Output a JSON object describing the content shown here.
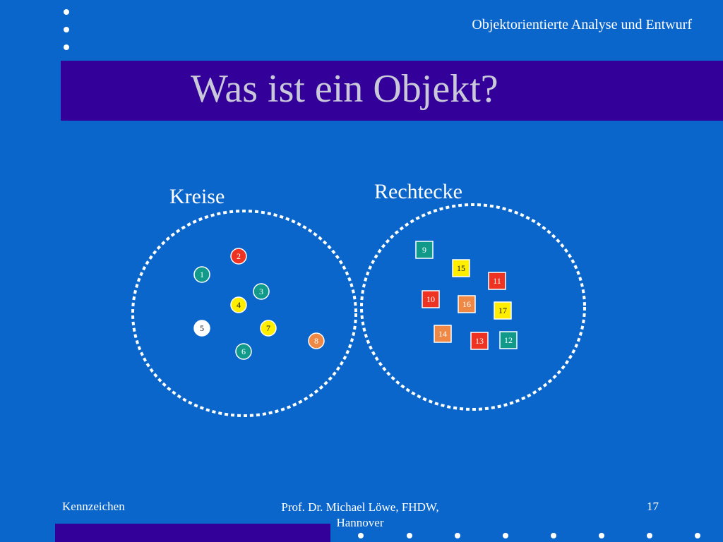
{
  "header": {
    "course_title": "Objektorientierte Analyse und Entwurf"
  },
  "slide": {
    "title": "Was ist ein Objekt?"
  },
  "groups": [
    {
      "label": "Kreise",
      "shape": "circle",
      "objects": [
        {
          "label": "1",
          "color": "#11998a"
        },
        {
          "label": "2",
          "color": "#ee3322"
        },
        {
          "label": "3",
          "color": "#11998a"
        },
        {
          "label": "4",
          "color": "#ffee00"
        },
        {
          "label": "5",
          "color": "#ffffff"
        },
        {
          "label": "6",
          "color": "#11998a"
        },
        {
          "label": "7",
          "color": "#ffee00"
        },
        {
          "label": "8",
          "color": "#ee8844"
        }
      ]
    },
    {
      "label": "Rechtecke",
      "shape": "square",
      "objects": [
        {
          "label": "9",
          "color": "#11998a"
        },
        {
          "label": "15",
          "color": "#ffee00"
        },
        {
          "label": "11",
          "color": "#ee3322"
        },
        {
          "label": "10",
          "color": "#ee3322"
        },
        {
          "label": "16",
          "color": "#ee8844"
        },
        {
          "label": "17",
          "color": "#ffee00"
        },
        {
          "label": "14",
          "color": "#ee8844"
        },
        {
          "label": "13",
          "color": "#ee3322"
        },
        {
          "label": "12",
          "color": "#11998a"
        }
      ]
    }
  ],
  "footer": {
    "left": "Kennzeichen",
    "center_line1": "Prof. Dr. Michael Löwe, FHDW,",
    "center_line2": "Hannover",
    "page": "17"
  },
  "colors": {
    "background": "#0b66cc",
    "band": "#330099",
    "title_text": "#c9c9d9"
  }
}
